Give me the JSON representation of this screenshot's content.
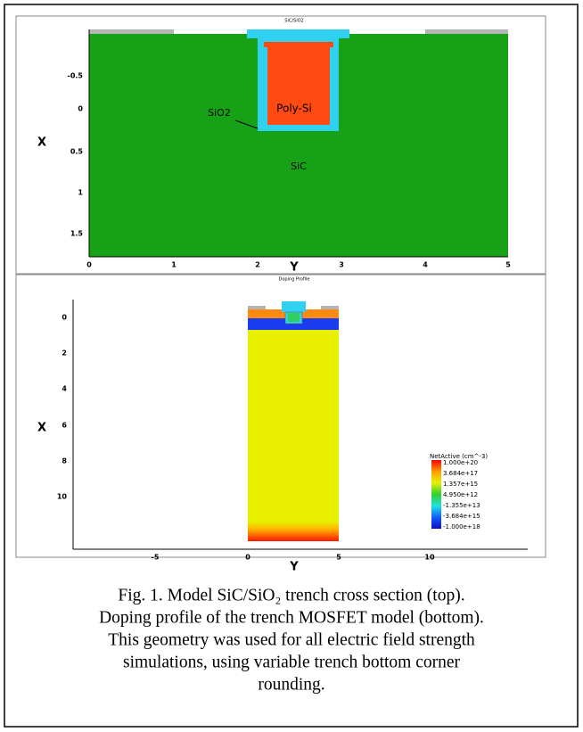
{
  "top_panel": {
    "title": "SiC/SiO2",
    "x_axis_label": "Y",
    "y_axis_label": "X",
    "x_ticks": [
      "0",
      "1",
      "2",
      "3",
      "4",
      "5"
    ],
    "y_ticks": [
      "-0.5",
      "0",
      "0.5",
      "1",
      "1.5"
    ],
    "regions": {
      "poly": "Poly-Si",
      "oxide": "SiO2",
      "substrate": "SiC"
    }
  },
  "bottom_panel": {
    "title": "Doping Profile",
    "x_axis_label": "Y",
    "y_axis_label": "X",
    "x_ticks": [
      "-5",
      "0",
      "5",
      "10"
    ],
    "y_ticks": [
      "0",
      "2",
      "4",
      "6",
      "8",
      "10"
    ],
    "legend": {
      "title": "NetActive (cm^-3)",
      "labels": [
        "1.000e+20",
        "3.684e+17",
        "1.357e+15",
        "4.950e+12",
        "-1.355e+13",
        "-3.684e+15",
        "-1.000e+18"
      ]
    }
  },
  "caption": {
    "lines": [
      "Fig. 1.  Model SiC/SiO₂ trench cross section (top).",
      "Doping profile of the trench MOSFET model (bottom).",
      "This geometry was used for all electric field strength",
      "simulations, using variable trench bottom corner",
      "rounding."
    ]
  }
}
